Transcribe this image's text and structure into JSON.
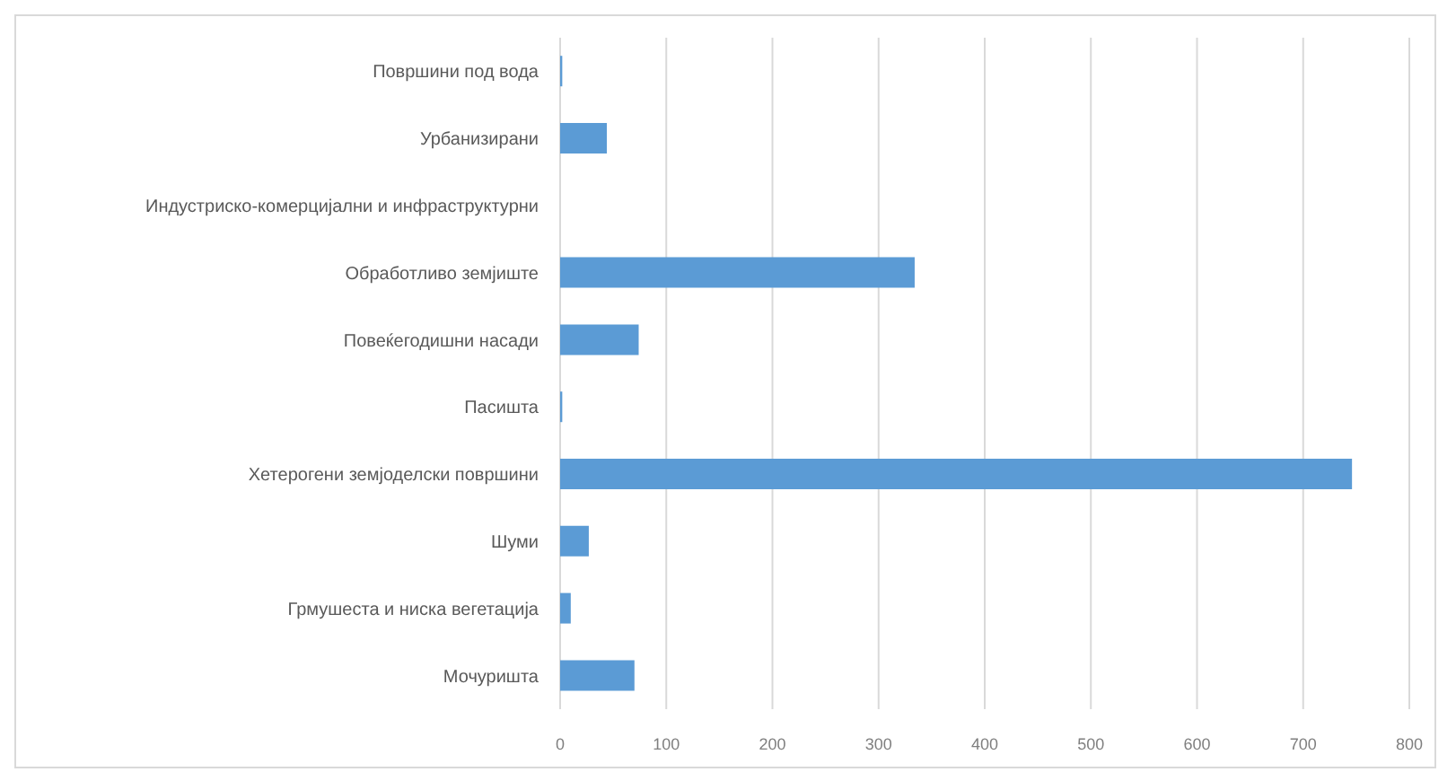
{
  "chart_data": {
    "type": "bar",
    "orientation": "horizontal",
    "categories": [
      "Површини под вода",
      "Урбанизирани",
      "Индустриско-комерцијални и инфраструктурни",
      "Обработливо земјиште",
      "Повеќегодишни насади",
      "Пасишта",
      "Хетерогени земјоделски површини",
      "Шуми",
      "Грмушеста и ниска вегетација",
      "Мочуришта"
    ],
    "values": [
      2,
      44,
      0,
      334,
      74,
      2,
      746,
      27,
      10,
      70
    ],
    "color": "#5b9bd5",
    "xlim": [
      0,
      800
    ],
    "xticks": [
      0,
      100,
      200,
      300,
      400,
      500,
      600,
      700,
      800
    ],
    "grid": "x"
  }
}
